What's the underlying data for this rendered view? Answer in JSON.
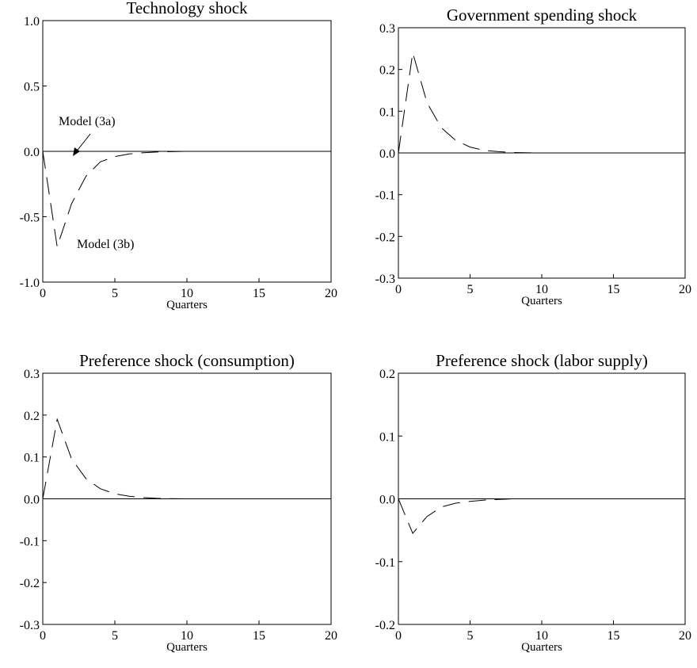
{
  "chart_data": [
    {
      "type": "line",
      "title": "Technology shock",
      "xlabel": "Quarters",
      "ylabel": "",
      "xlim": [
        0,
        20
      ],
      "ylim": [
        -1.0,
        1.0
      ],
      "xticks": [
        "0",
        "5",
        "10",
        "15",
        "20"
      ],
      "yticks": [
        "1.0",
        "0.5",
        "0.0",
        "-0.5",
        "-1.0"
      ],
      "grid": false,
      "series": [
        {
          "name": "Model (3a)",
          "style": "solid",
          "x": [
            0,
            20
          ],
          "y": [
            0.0,
            0.0
          ]
        },
        {
          "name": "Model (3b)",
          "style": "dashed",
          "x": [
            0,
            1,
            2,
            3,
            4,
            5,
            6,
            7,
            8,
            10,
            15,
            20
          ],
          "y": [
            0.0,
            -0.73,
            -0.4,
            -0.19,
            -0.08,
            -0.04,
            -0.02,
            -0.01,
            -0.005,
            0.0,
            0.0,
            0.0
          ]
        }
      ],
      "annotations": [
        {
          "text": "Model (3a)",
          "arrow": true
        },
        {
          "text": "Model (3b)",
          "arrow": false
        }
      ]
    },
    {
      "type": "line",
      "title": "Government spending shock",
      "xlabel": "Quarters",
      "ylabel": "",
      "xlim": [
        0,
        20
      ],
      "ylim": [
        -0.3,
        0.3
      ],
      "xticks": [
        "0",
        "5",
        "10",
        "15",
        "20"
      ],
      "yticks": [
        "0.3",
        "0.2",
        "0.1",
        "0.0",
        "-0.1",
        "-0.2",
        "-0.3"
      ],
      "grid": false,
      "series": [
        {
          "style": "solid",
          "x": [
            0,
            20
          ],
          "y": [
            0.0,
            0.0
          ]
        },
        {
          "style": "dashed",
          "x": [
            0,
            1,
            2,
            3,
            4,
            5,
            6,
            7,
            8,
            10,
            15,
            20
          ],
          "y": [
            0.0,
            0.24,
            0.12,
            0.06,
            0.03,
            0.014,
            0.006,
            0.003,
            0.001,
            0.0,
            0.0,
            0.0
          ]
        }
      ]
    },
    {
      "type": "line",
      "title": "Preference shock (consumption)",
      "xlabel": "Quarters",
      "ylabel": "",
      "xlim": [
        0,
        20
      ],
      "ylim": [
        -0.3,
        0.3
      ],
      "xticks": [
        "0",
        "5",
        "10",
        "15",
        "20"
      ],
      "yticks": [
        "0.3",
        "0.2",
        "0.1",
        "0.0",
        "-0.1",
        "-0.2",
        "-0.3"
      ],
      "grid": false,
      "series": [
        {
          "style": "solid",
          "x": [
            0,
            20
          ],
          "y": [
            0.0,
            0.0
          ]
        },
        {
          "style": "dashed",
          "x": [
            0,
            1,
            2,
            3,
            4,
            5,
            6,
            7,
            8,
            10,
            15,
            20
          ],
          "y": [
            0.0,
            0.19,
            0.095,
            0.048,
            0.024,
            0.012,
            0.006,
            0.003,
            0.001,
            0.0,
            0.0,
            0.0
          ]
        }
      ]
    },
    {
      "type": "line",
      "title": "Preference shock (labor supply)",
      "xlabel": "Quarters",
      "ylabel": "",
      "xlim": [
        0,
        20
      ],
      "ylim": [
        -0.2,
        0.2
      ],
      "xticks": [
        "0",
        "5",
        "10",
        "15",
        "20"
      ],
      "yticks": [
        "0.2",
        "0.1",
        "0.0",
        "-0.1",
        "-0.2"
      ],
      "grid": false,
      "series": [
        {
          "style": "solid",
          "x": [
            0,
            20
          ],
          "y": [
            0.0,
            0.0
          ]
        },
        {
          "style": "dashed",
          "x": [
            0,
            1,
            2,
            3,
            4,
            5,
            6,
            7,
            8,
            10,
            15,
            20
          ],
          "y": [
            0.0,
            -0.055,
            -0.028,
            -0.013,
            -0.007,
            -0.004,
            -0.002,
            -0.001,
            0.0,
            0.0,
            0.0,
            0.0
          ]
        }
      ]
    }
  ]
}
